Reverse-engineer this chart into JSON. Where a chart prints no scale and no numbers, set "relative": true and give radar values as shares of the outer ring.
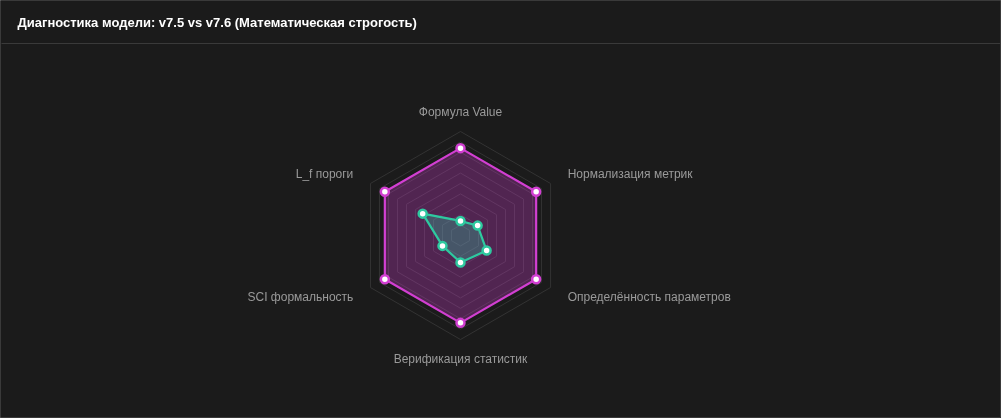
{
  "chart_data": {
    "type": "radar",
    "title": "Диагностика модели: v7.5 vs v7.6 (Математическая строгость)",
    "relative": true,
    "grid": true,
    "marker": "circle",
    "line_style": "solid",
    "categories": [
      "Формула Value",
      "Нормализация метрик",
      "Определённость параметров",
      "Верификация статистик",
      "SCI формальность",
      "L_f пороги"
    ],
    "series": [
      {
        "color": "#d23fd2",
        "values": [
          0.84,
          0.84,
          0.84,
          0.84,
          0.84,
          0.84
        ]
      },
      {
        "color": "#2ec9a0",
        "values": [
          0.14,
          0.19,
          0.29,
          0.26,
          0.2,
          0.42
        ]
      }
    ]
  }
}
